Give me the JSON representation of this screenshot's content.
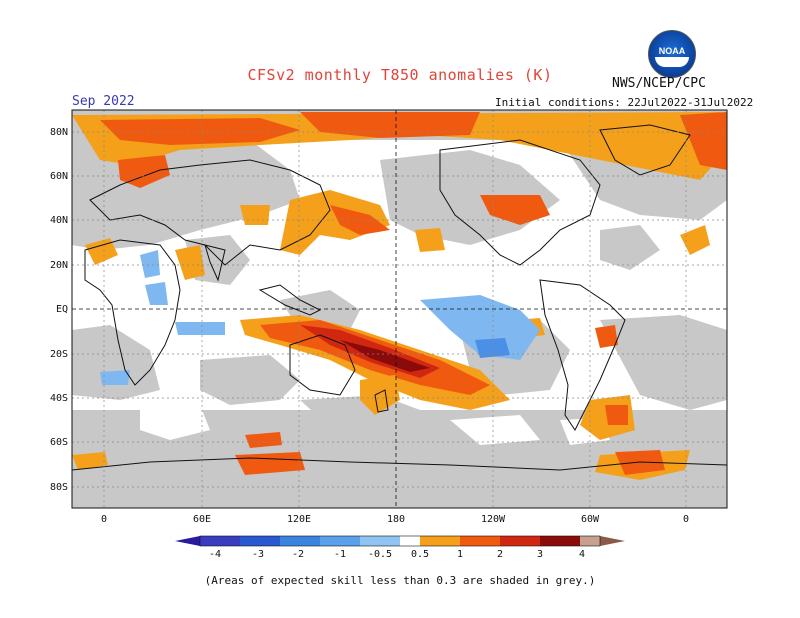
{
  "title": "CFSv2 monthly T850 anomalies (K)",
  "agency": "NWS/NCEP/CPC",
  "logo_text": "NOAA",
  "period": "Sep 2022",
  "initial_conditions": "Initial conditions: 22Jul2022-31Jul2022",
  "footnote": "(Areas of expected skill less than 0.3 are shaded in grey.)",
  "map": {
    "lat_labels": [
      "80N",
      "60N",
      "40N",
      "20N",
      "EQ",
      "20S",
      "40S",
      "60S",
      "80S"
    ],
    "lon_labels": [
      "0",
      "60E",
      "120E",
      "180",
      "120W",
      "60W",
      "0"
    ],
    "grid": true,
    "projection": "cylindrical equidistant, 20E centered"
  },
  "colorbar": {
    "labels": [
      "-4",
      "-3",
      "-2",
      "-1",
      "-0.5",
      "0.5",
      "1",
      "2",
      "3",
      "4"
    ],
    "colors": [
      "#2a1a9e",
      "#3a4cc8",
      "#2a6fd8",
      "#4a90e6",
      "#7fb8f0",
      "#ffffff",
      "#f5a01a",
      "#f05a10",
      "#d02810",
      "#8b0a0a",
      "#c8a090",
      "#8a5a4a"
    ]
  },
  "palette": {
    "grey": "#c8c8c8",
    "light_orange": "#f5a01a",
    "orange": "#f05a10",
    "red": "#d02810",
    "dark_red": "#8b0a0a",
    "light_blue": "#7fb8f0",
    "blue": "#4a90e6"
  }
}
